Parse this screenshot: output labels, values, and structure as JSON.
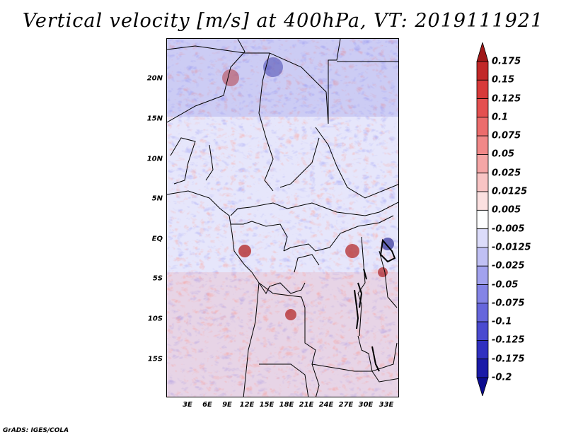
{
  "title": "Vertical velocity [m/s] at 400hPa, VT: 2019111921",
  "credit": "GrADS: IGES/COLA",
  "lat_labels": [
    "20N",
    "15N",
    "10N",
    "5N",
    "EQ",
    "5S",
    "10S",
    "15S"
  ],
  "lon_labels": [
    "3E",
    "6E",
    "9E",
    "12E",
    "15E",
    "18E",
    "21E",
    "24E",
    "27E",
    "30E",
    "33E"
  ],
  "colorbar": {
    "levels": [
      "0.175",
      "0.15",
      "0.125",
      "0.1",
      "0.075",
      "0.05",
      "0.025",
      "0.0125",
      "0.005",
      "-0.005",
      "-0.0125",
      "-0.025",
      "-0.05",
      "-0.075",
      "-0.1",
      "-0.125",
      "-0.175",
      "-0.2"
    ],
    "colors": [
      "#a01818",
      "#c22828",
      "#d83a3a",
      "#e45050",
      "#ec6c6c",
      "#f18888",
      "#f5a6a6",
      "#f8c4c4",
      "#fbe0e0",
      "#ffffff",
      "#dcdcfa",
      "#c0c0f4",
      "#a2a2ee",
      "#8484e6",
      "#6666dc",
      "#4a4ad0",
      "#3030c0",
      "#1a1aa8",
      "#0c0c90"
    ]
  }
}
